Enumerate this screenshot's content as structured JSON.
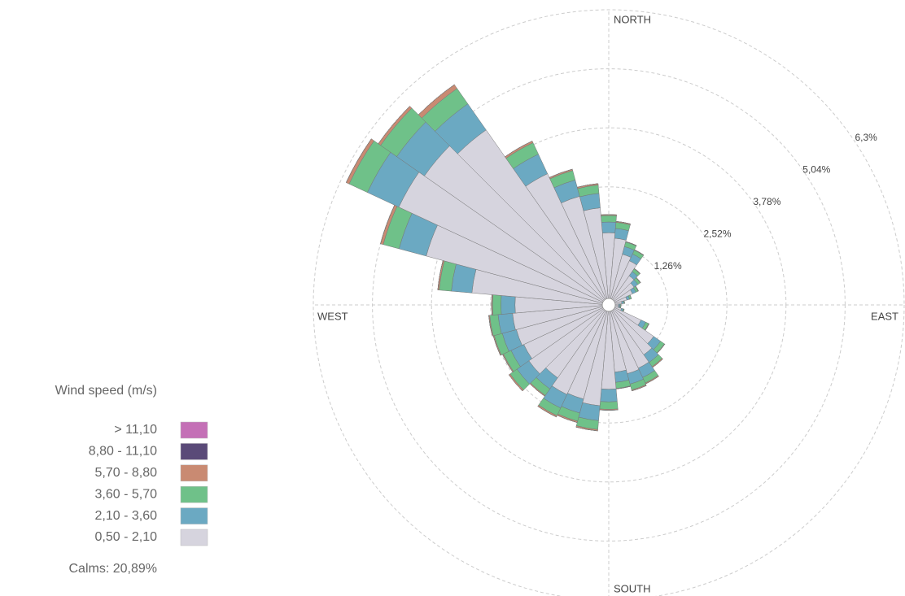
{
  "chart_data": {
    "type": "windrose",
    "directions": [
      "NORTH",
      null,
      null,
      null,
      null,
      null,
      null,
      null,
      null,
      "EAST",
      null,
      null,
      null,
      null,
      null,
      null,
      null,
      null,
      "SOUTH",
      null,
      null,
      null,
      null,
      null,
      null,
      null,
      null,
      "WEST",
      null,
      null,
      null,
      null,
      null,
      null,
      null,
      null
    ],
    "rlim": [
      0,
      6.3
    ],
    "rticks": [
      {
        "value": 1.26,
        "label": "1,26%"
      },
      {
        "value": 2.52,
        "label": "2,52%"
      },
      {
        "value": 3.78,
        "label": "3,78%"
      },
      {
        "value": 5.04,
        "label": "5,04%"
      },
      {
        "value": 6.3,
        "label": "6,3%"
      }
    ],
    "legend_title": "Wind speed (m/s)",
    "calms": "Calms: 20,89%",
    "series": [
      {
        "name": "0,50 - 2,10",
        "color": "#d6d4de",
        "values": [
          1.54,
          1.43,
          1.12,
          1.04,
          0.76,
          0.66,
          0.56,
          0.4,
          0.28,
          0.21,
          0.21,
          0.28,
          0.76,
          1.17,
          1.3,
          1.49,
          1.52,
          1.44,
          1.8,
          2.16,
          2.08,
          2.11,
          1.9,
          2.08,
          2.0,
          2.04,
          2.06,
          2.0,
          2.93,
          4.03,
          4.94,
          4.8,
          4.56,
          3.09,
          2.4,
          2.08
        ]
      },
      {
        "name": "2,10 - 3,60",
        "color": "#6ba9c2",
        "values": [
          0.23,
          0.21,
          0.17,
          0.16,
          0.11,
          0.1,
          0.08,
          0.06,
          0.04,
          0.03,
          0.03,
          0.04,
          0.11,
          0.18,
          0.2,
          0.22,
          0.23,
          0.22,
          0.27,
          0.32,
          0.31,
          0.32,
          0.29,
          0.31,
          0.3,
          0.31,
          0.31,
          0.3,
          0.44,
          0.6,
          0.74,
          0.72,
          0.68,
          0.46,
          0.36,
          0.31
        ]
      },
      {
        "name": "3,60 - 5,70",
        "color": "#6fc189",
        "values": [
          0.14,
          0.13,
          0.1,
          0.09,
          0.07,
          0.06,
          0.05,
          0.04,
          0.02,
          0.02,
          0.02,
          0.02,
          0.07,
          0.1,
          0.11,
          0.13,
          0.13,
          0.13,
          0.16,
          0.19,
          0.18,
          0.18,
          0.17,
          0.18,
          0.18,
          0.18,
          0.18,
          0.18,
          0.26,
          0.35,
          0.43,
          0.42,
          0.4,
          0.27,
          0.21,
          0.18
        ]
      },
      {
        "name": "5,70 - 8,80",
        "color": "#c98a72",
        "values": [
          0.02,
          0.02,
          0.01,
          0.01,
          0.01,
          0.01,
          0.01,
          0,
          0,
          0,
          0,
          0,
          0.01,
          0.01,
          0.02,
          0.02,
          0.02,
          0.01,
          0.02,
          0.03,
          0.03,
          0.03,
          0.02,
          0.03,
          0.02,
          0.02,
          0.02,
          0.02,
          0.03,
          0.06,
          0.07,
          0.06,
          0.1,
          0.04,
          0.03,
          0.03
        ]
      },
      {
        "name": "8,80 - 11,10",
        "color": "#5a4a78",
        "values": [
          0,
          0,
          0,
          0,
          0,
          0,
          0,
          0,
          0,
          0,
          0,
          0,
          0,
          0,
          0,
          0,
          0,
          0,
          0,
          0,
          0,
          0,
          0,
          0,
          0,
          0,
          0,
          0,
          0,
          0,
          0,
          0,
          0,
          0,
          0,
          0
        ]
      },
      {
        "name": "> 11,10",
        "color": "#c470b6",
        "values": [
          0,
          0,
          0,
          0,
          0,
          0,
          0,
          0,
          0,
          0,
          0,
          0,
          0,
          0,
          0,
          0,
          0,
          0,
          0,
          0,
          0,
          0,
          0,
          0,
          0,
          0,
          0,
          0,
          0,
          0,
          0,
          0,
          0,
          0,
          0,
          0
        ]
      }
    ]
  }
}
